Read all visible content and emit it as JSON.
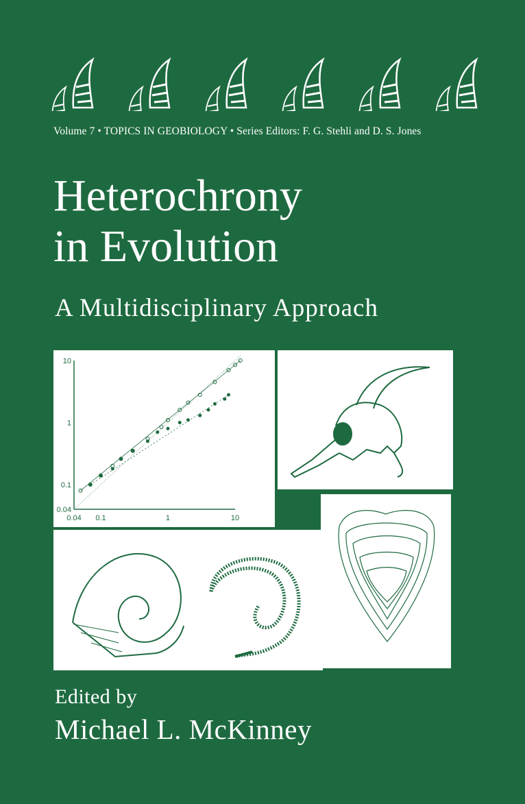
{
  "cover": {
    "series_line": "Volume 7 • TOPICS IN GEOBIOLOGY • Series Editors: F. G. Stehli and D. S. Jones",
    "title_line1": "Heterochrony",
    "title_line2": "in Evolution",
    "subtitle": "A Multidisciplinary Approach",
    "edited_by": "Edited by",
    "editor": "Michael L. McKinney",
    "colors": {
      "background": "#1e6a40",
      "panel": "#ffffff",
      "ink": "#1e6a40"
    },
    "illustrations": [
      "tooth-icons-row",
      "log-log-scatter-plot",
      "animal-skull-drawing",
      "ammonite-shell-drawing",
      "coiled-shell-drawing",
      "growth-lines-shell-drawing"
    ]
  },
  "chart_data": {
    "type": "scatter",
    "xscale": "log",
    "yscale": "log",
    "xlim": [
      0.04,
      10
    ],
    "ylim": [
      0.04,
      10
    ],
    "xticks": [
      "0.04",
      "0.1",
      "1",
      "10"
    ],
    "yticks": [
      "0.04",
      "0.1",
      "1",
      "10"
    ],
    "grid": false,
    "series": [
      {
        "marker": "open-circle",
        "x": [
          0.05,
          0.07,
          0.1,
          0.15,
          0.2,
          0.3,
          0.5,
          0.8,
          1,
          1.5,
          2,
          3,
          5,
          8,
          10,
          12
        ],
        "y": [
          0.08,
          0.1,
          0.14,
          0.2,
          0.26,
          0.35,
          0.55,
          0.85,
          1.1,
          1.6,
          2.1,
          2.8,
          4.5,
          7,
          8.5,
          10
        ]
      },
      {
        "marker": "filled-dot",
        "x": [
          0.07,
          0.1,
          0.15,
          0.2,
          0.3,
          0.5,
          0.7,
          1,
          1.5,
          2,
          3,
          4,
          5,
          7,
          8
        ],
        "y": [
          0.1,
          0.14,
          0.18,
          0.26,
          0.35,
          0.5,
          0.7,
          0.8,
          1,
          1.1,
          1.3,
          1.6,
          2,
          2.4,
          2.8
        ]
      }
    ]
  }
}
